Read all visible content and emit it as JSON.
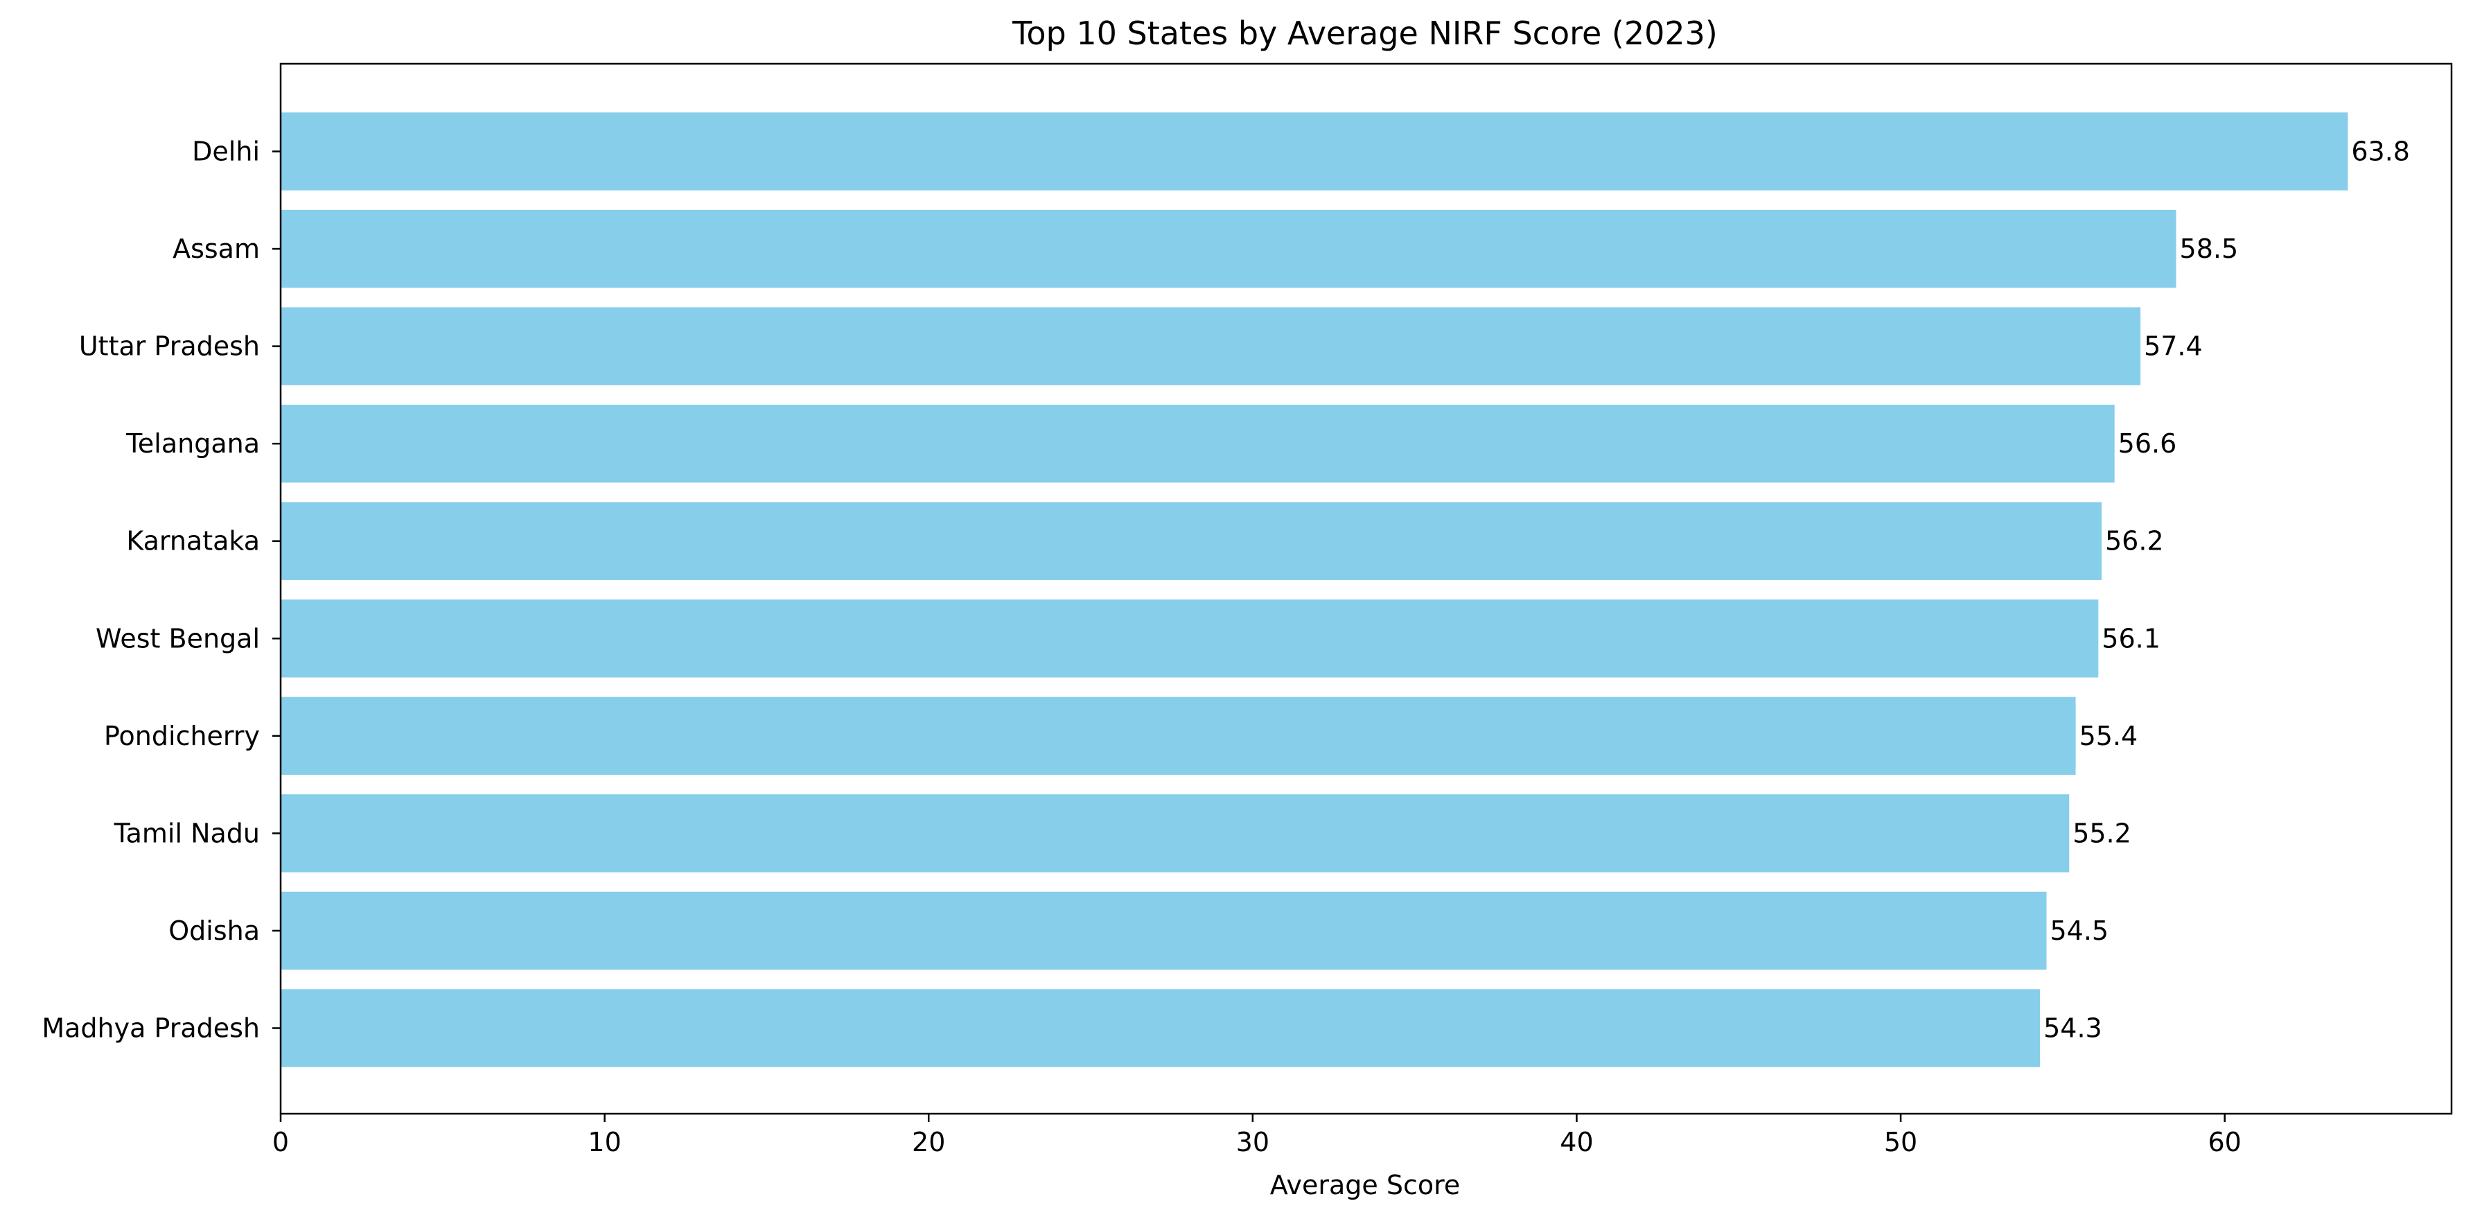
{
  "chart_data": {
    "type": "bar",
    "orientation": "horizontal",
    "title": "Top 10 States by Average NIRF Score (2023)",
    "xlabel": "Average Score",
    "ylabel": "",
    "categories": [
      "Delhi",
      "Assam",
      "Uttar Pradesh",
      "Telangana",
      "Karnataka",
      "West Bengal",
      "Pondicherry",
      "Tamil Nadu",
      "Odisha",
      "Madhya Pradesh"
    ],
    "values": [
      63.8,
      58.5,
      57.4,
      56.6,
      56.2,
      56.1,
      55.4,
      55.2,
      54.5,
      54.3
    ],
    "value_labels": [
      "63.8",
      "58.5",
      "57.4",
      "56.6",
      "56.2",
      "56.1",
      "55.4",
      "55.2",
      "54.5",
      "54.3"
    ],
    "xlim": [
      0,
      67
    ],
    "x_ticks": [
      0,
      10,
      20,
      30,
      40,
      50,
      60
    ],
    "x_tick_labels": [
      "0",
      "10",
      "20",
      "30",
      "40",
      "50",
      "60"
    ],
    "grid": false,
    "legend": "none",
    "bar_color": "#87CEEB"
  }
}
